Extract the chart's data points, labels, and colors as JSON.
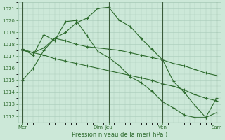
{
  "background_color": "#cce8d8",
  "grid_color": "#a8cbb8",
  "line_color": "#2d6b2d",
  "xlabel": "Pression niveau de la mer( hPa )",
  "ylim": [
    1011.5,
    1021.5
  ],
  "yticks": [
    1012,
    1013,
    1014,
    1015,
    1016,
    1017,
    1018,
    1019,
    1020,
    1021
  ],
  "xtick_positions": [
    0,
    3.5,
    4.0,
    6.5,
    9.0
  ],
  "xtick_labels": [
    "Mer",
    "Dim",
    "Jeu",
    "Ven",
    "Sam"
  ],
  "vlines": [
    0,
    3.5,
    4.0,
    6.5,
    9.0
  ],
  "x_total": 9.0,
  "line1_x": [
    0,
    0.5,
    1.0,
    1.5,
    2.0,
    2.5,
    3.0,
    3.5,
    4.0,
    4.5,
    5.0,
    5.5,
    6.0,
    6.5,
    7.0,
    7.5,
    8.0,
    8.5,
    9.0
  ],
  "line1_y": [
    1015.0,
    1016.0,
    1017.5,
    1018.5,
    1019.0,
    1019.8,
    1020.2,
    1021.0,
    1021.1,
    1020.0,
    1019.5,
    1018.5,
    1017.6,
    1016.7,
    1014.9,
    1014.0,
    1012.9,
    1011.9,
    1012.3
  ],
  "line2_x": [
    0,
    0.5,
    1.0,
    1.5,
    2.0,
    2.5,
    3.0,
    3.5,
    4.0,
    4.5,
    5.0,
    5.5,
    6.0,
    6.5,
    7.0,
    7.5,
    8.0,
    8.5,
    9.0
  ],
  "line2_y": [
    1017.5,
    1017.3,
    1017.7,
    1018.5,
    1018.3,
    1018.0,
    1017.8,
    1017.7,
    1017.6,
    1017.5,
    1017.3,
    1017.1,
    1016.9,
    1016.7,
    1016.4,
    1016.2,
    1015.9,
    1015.6,
    1015.4
  ],
  "line3_x": [
    0,
    0.5,
    1.0,
    1.5,
    2.0,
    2.5,
    3.0,
    3.5,
    4.0,
    4.5,
    5.0,
    5.5,
    6.0,
    6.5,
    7.0,
    7.5,
    8.0,
    8.5,
    9.0
  ],
  "line3_y": [
    1017.6,
    1017.3,
    1017.1,
    1016.8,
    1016.6,
    1016.4,
    1016.2,
    1016.0,
    1015.8,
    1015.6,
    1015.4,
    1015.2,
    1015.0,
    1014.7,
    1014.5,
    1014.2,
    1013.8,
    1013.5,
    1013.3
  ],
  "line4_x": [
    0,
    0.5,
    1.0,
    1.5,
    2.0,
    2.5,
    3.0,
    3.5,
    4.0,
    4.5,
    5.0,
    5.5,
    6.0,
    6.5,
    7.0,
    7.5,
    8.0,
    8.5,
    9.0
  ],
  "line4_y": [
    1017.6,
    1017.1,
    1018.8,
    1018.3,
    1019.9,
    1020.0,
    1018.7,
    1017.4,
    1016.9,
    1016.2,
    1015.3,
    1014.8,
    1014.1,
    1013.2,
    1012.7,
    1012.1,
    1011.9,
    1011.9,
    1013.5
  ]
}
